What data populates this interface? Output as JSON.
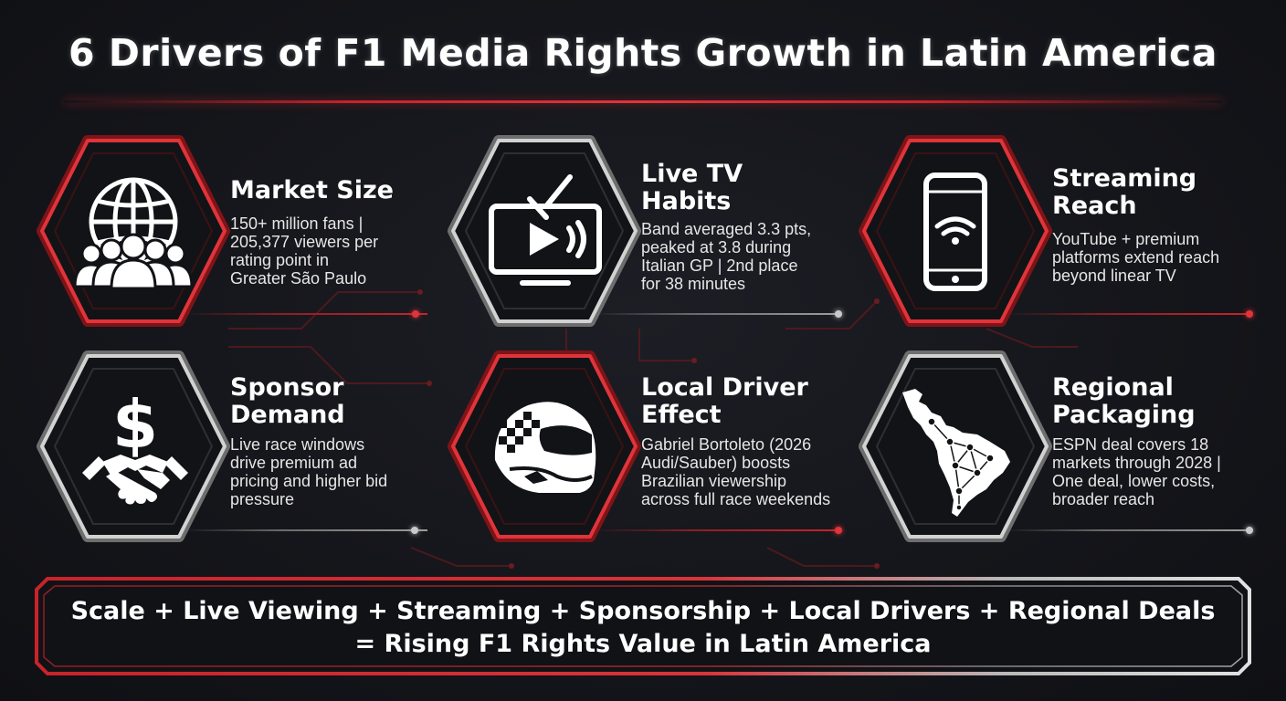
{
  "title": "6 Drivers of F1 Media Rights Growth in Latin America",
  "colors": {
    "accent_red": "#c8232a",
    "silver": "#b8b8b8",
    "background": "#15161b"
  },
  "drivers": [
    {
      "title_lines": [
        "Market Size"
      ],
      "text_lines": [
        "150+ million fans |",
        "205,377 viewers per",
        "rating point in",
        "Greater São Paulo"
      ],
      "icon": "globe-people-icon",
      "frame": "red"
    },
    {
      "title_lines": [
        "Live TV",
        "Habits"
      ],
      "text_lines": [
        "Band averaged 3.3 pts,",
        "peaked at 3.8 during",
        "Italian GP | 2nd place",
        "for 38 minutes"
      ],
      "icon": "tv-play-icon",
      "frame": "silver"
    },
    {
      "title_lines": [
        "Streaming",
        "Reach"
      ],
      "text_lines": [
        "YouTube + premium",
        "platforms extend reach",
        "beyond linear TV"
      ],
      "icon": "smartphone-wifi-icon",
      "frame": "red"
    },
    {
      "title_lines": [
        "Sponsor",
        "Demand"
      ],
      "text_lines": [
        "Live race windows",
        "drive premium ad",
        "pricing and higher bid",
        "pressure"
      ],
      "icon": "dollar-handshake-icon",
      "frame": "silver"
    },
    {
      "title_lines": [
        "Local Driver",
        "Effect"
      ],
      "text_lines": [
        "Gabriel Bortoleto (2026",
        "Audi/Sauber) boosts",
        "Brazilian viewership",
        "across full race weekends"
      ],
      "icon": "racing-helmet-icon",
      "frame": "red"
    },
    {
      "title_lines": [
        "Regional",
        "Packaging"
      ],
      "text_lines": [
        "ESPN deal covers 18",
        "markets through 2028 |",
        "One deal, lower costs,",
        "broader reach"
      ],
      "icon": "latin-america-network-map-icon",
      "frame": "silver"
    }
  ],
  "footer": {
    "line1": "Scale + Live Viewing + Streaming + Sponsorship + Local Drivers + Regional Deals",
    "line2": "= Rising F1 Rights Value in Latin America"
  }
}
